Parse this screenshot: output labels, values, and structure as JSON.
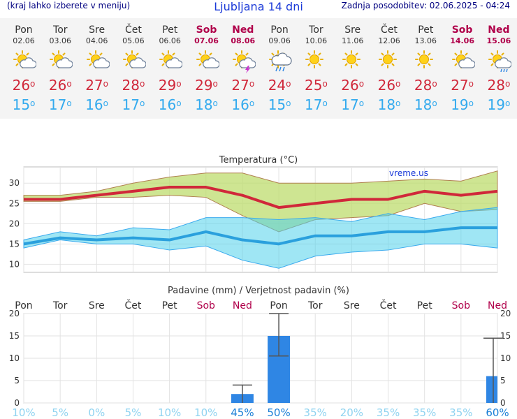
{
  "header": {
    "region_hint": "(kraj lahko izberete v meniju)",
    "title": "Ljubljana 14 dni",
    "last_update": "Zadnja posodobitev: 02.06.2025 - 04:24"
  },
  "days": [
    {
      "name": "Pon",
      "date": "02.06",
      "weekend": false,
      "icon": "sun-cloud-icon",
      "tmax": "26",
      "tmin": "15"
    },
    {
      "name": "Tor",
      "date": "03.06",
      "weekend": false,
      "icon": "sun-cloud-icon",
      "tmax": "26",
      "tmin": "17"
    },
    {
      "name": "Sre",
      "date": "04.06",
      "weekend": false,
      "icon": "sun-cloud-icon",
      "tmax": "27",
      "tmin": "16"
    },
    {
      "name": "Čet",
      "date": "05.06",
      "weekend": false,
      "icon": "sun-cloud-icon",
      "tmax": "28",
      "tmin": "17"
    },
    {
      "name": "Pet",
      "date": "06.06",
      "weekend": false,
      "icon": "sun-cloud-icon",
      "tmax": "29",
      "tmin": "16"
    },
    {
      "name": "Sob",
      "date": "07.06",
      "weekend": true,
      "icon": "sun-cloud-icon",
      "tmax": "29",
      "tmin": "18"
    },
    {
      "name": "Ned",
      "date": "08.06",
      "weekend": true,
      "icon": "thunderstorm-icon",
      "tmax": "27",
      "tmin": "16"
    },
    {
      "name": "Pon",
      "date": "09.06",
      "weekend": false,
      "icon": "rain-cloud-icon",
      "tmax": "24",
      "tmin": "15"
    },
    {
      "name": "Tor",
      "date": "10.06",
      "weekend": false,
      "icon": "sun-icon",
      "tmax": "25",
      "tmin": "17"
    },
    {
      "name": "Sre",
      "date": "11.06",
      "weekend": false,
      "icon": "sun-icon",
      "tmax": "26",
      "tmin": "17"
    },
    {
      "name": "Čet",
      "date": "12.06",
      "weekend": false,
      "icon": "sun-icon",
      "tmax": "26",
      "tmin": "18"
    },
    {
      "name": "Pet",
      "date": "13.06",
      "weekend": false,
      "icon": "sun-icon",
      "tmax": "28",
      "tmin": "18"
    },
    {
      "name": "Sob",
      "date": "14.06",
      "weekend": true,
      "icon": "sun-cloud-icon",
      "tmax": "27",
      "tmin": "19"
    },
    {
      "name": "Ned",
      "date": "15.06",
      "weekend": true,
      "icon": "sun-rain-icon",
      "tmax": "28",
      "tmin": "19"
    }
  ],
  "colors": {
    "max": "#d0283a",
    "min": "#33aaee",
    "weekend": "#b0004a",
    "bar": "#2f86e4"
  },
  "chart_data": [
    {
      "type": "line",
      "title": "Temperatura (°C)",
      "watermark": "vreme.us",
      "ylim": [
        8,
        34
      ],
      "yticks": [
        10,
        15,
        20,
        25,
        30
      ],
      "grid": true,
      "series": [
        {
          "name": "max",
          "values": [
            26,
            26,
            27,
            28,
            29,
            29,
            27,
            24,
            25,
            26,
            26,
            28,
            27,
            28
          ]
        },
        {
          "name": "max_upper",
          "values": [
            27,
            27,
            28,
            30,
            31.5,
            32.5,
            32.5,
            30,
            30,
            30,
            30.5,
            31,
            30.5,
            33
          ]
        },
        {
          "name": "max_lower",
          "values": [
            25.5,
            25.5,
            26.5,
            26.5,
            27,
            26.5,
            22,
            18,
            21,
            21.5,
            22,
            25,
            23,
            23.5
          ]
        },
        {
          "name": "min",
          "values": [
            15,
            16.5,
            16,
            16.5,
            16,
            18,
            16,
            15,
            17,
            17,
            18,
            18,
            19,
            19
          ]
        },
        {
          "name": "min_upper",
          "values": [
            16,
            18,
            17,
            19,
            18.5,
            21.5,
            21.5,
            21,
            21.5,
            20.5,
            22.5,
            21,
            23,
            24
          ]
        },
        {
          "name": "min_lower",
          "values": [
            14,
            16,
            15,
            15,
            13.5,
            14.5,
            11,
            9,
            12,
            13,
            13.5,
            15,
            15,
            14
          ]
        }
      ]
    },
    {
      "type": "bar",
      "title": "Padavine (mm) / Verjetnost padavin (%)",
      "ylim": [
        0,
        20
      ],
      "yticks": [
        0,
        5,
        10,
        15,
        20
      ],
      "values": [
        0,
        0,
        0,
        0,
        0,
        0,
        2,
        15,
        0,
        0,
        0,
        0,
        0,
        6
      ],
      "error_high": [
        0,
        0,
        0,
        0,
        0,
        0,
        4,
        20,
        0,
        0,
        0,
        0,
        0,
        14.5
      ],
      "error_low": [
        0,
        0,
        0,
        0,
        0,
        0,
        0,
        10.5,
        0,
        0,
        0,
        0,
        0,
        0
      ],
      "probability": [
        "10%",
        "5%",
        "0%",
        "5%",
        "10%",
        "10%",
        "45%",
        "50%",
        "35%",
        "20%",
        "35%",
        "35%",
        "35%",
        "60%"
      ]
    }
  ]
}
